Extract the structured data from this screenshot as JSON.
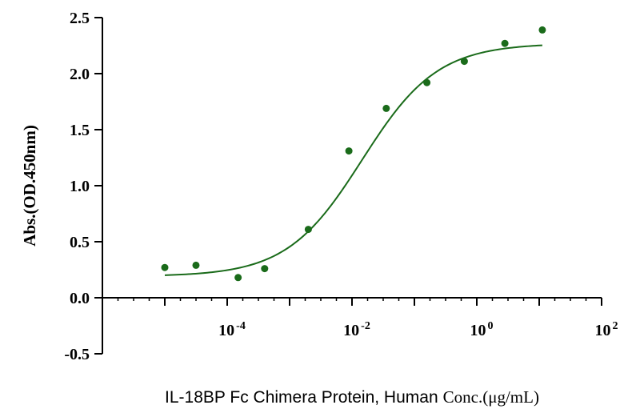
{
  "chart_data": {
    "type": "scatter",
    "x_scale": "log",
    "x": [
      1e-05,
      3.16e-05,
      0.0001496,
      0.0003981,
      0.001995,
      0.008913,
      0.0354,
      0.1585,
      0.631,
      2.818,
      11.22
    ],
    "y": [
      0.27,
      0.29,
      0.18,
      0.26,
      0.61,
      1.31,
      1.69,
      1.92,
      2.11,
      2.27,
      2.39
    ],
    "fit": {
      "bottom": 0.19,
      "top": 2.27,
      "ec50": 0.0145,
      "hill": 0.72,
      "x_range": [
        1e-05,
        11.22
      ]
    },
    "ylabel": "Abs.(OD.450nm)",
    "xlabel_main": "IL-18BP Fc Chimera Protein, Human",
    "xlabel_units": "Conc.(μg/mL)",
    "xlim": [
      1e-06,
      100
    ],
    "ylim": [
      -0.5,
      2.5
    ],
    "y_ticks": [
      "-0.5",
      "0.0",
      "0.5",
      "1.0",
      "1.5",
      "2.0",
      "2.5"
    ],
    "x_ticks": [
      {
        "base": "10",
        "exp": "-4"
      },
      {
        "base": "10",
        "exp": "-2"
      },
      {
        "base": "10",
        "exp": "0"
      },
      {
        "base": "10",
        "exp": "2"
      }
    ],
    "grid": false,
    "colors": {
      "series": "#1a6b1a",
      "axis": "#000000"
    }
  }
}
